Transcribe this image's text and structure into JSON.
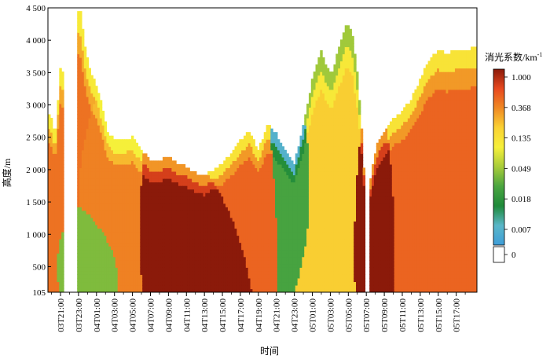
{
  "chart_data": {
    "type": "heatmap",
    "xlabel": "时间",
    "ylabel": "高度/m",
    "colorbar_title": "消光系数/km",
    "colorbar_title_sup": "-1",
    "y_ticks": [
      105,
      500,
      1000,
      1500,
      2000,
      2500,
      3000,
      3500,
      4000,
      4500
    ],
    "y_tick_labels": [
      "105",
      "500",
      "1 000",
      "1 500",
      "2 000",
      "2 500",
      "3 000",
      "3 500",
      "4 000",
      "4 500"
    ],
    "ylim": [
      105,
      4500
    ],
    "x_start_hour": 19.6,
    "x_end_hour": 67.3,
    "x_ticks_hour": [
      21,
      23,
      25,
      27,
      29,
      31,
      33,
      35,
      37,
      39,
      41,
      43,
      45,
      47,
      49,
      51,
      53,
      55,
      57,
      59,
      61,
      63,
      65
    ],
    "x_tick_labels": [
      "03T21:00",
      "03T23:00",
      "04T01:00",
      "04T03:00",
      "04T05:00",
      "04T07:00",
      "04T09:00",
      "04T11:00",
      "04T13:00",
      "04T15:00",
      "04T17:00",
      "04T19:00",
      "04T21:00",
      "04T23:00",
      "05T01:00",
      "05T03:00",
      "05T05:00",
      "05T07:00",
      "05T09:00",
      "05T11:00",
      "05T13:00",
      "05T15:00",
      "05T17:00"
    ],
    "colorbar": {
      "scale": "log",
      "tick_labels": [
        "1.000",
        "0.368",
        "0.135",
        "0.049",
        "0.018",
        "0.007",
        "0"
      ],
      "tick_values": [
        1.0,
        0.368,
        0.135,
        0.049,
        0.018,
        0.007,
        0
      ],
      "colors": [
        "#8b1a0a",
        "#e8491f",
        "#f08a24",
        "#fad233",
        "#f6f03a",
        "#a8cc3a",
        "#4aa540",
        "#1f8a3a",
        "#5ab6c8",
        "#3f9ed8",
        "#ffffff"
      ]
    },
    "profile_top_m": [
      [
        19.6,
        2900
      ],
      [
        20.0,
        2800
      ],
      [
        20.4,
        2500
      ],
      [
        21.0,
        3600
      ],
      [
        21.5,
        3400
      ],
      [
        22.0,
        3900
      ],
      [
        22.6,
        4500
      ],
      [
        23.2,
        4450
      ],
      [
        23.8,
        3800
      ],
      [
        24.4,
        3500
      ],
      [
        25.0,
        3300
      ],
      [
        25.6,
        3000
      ],
      [
        26.2,
        2600
      ],
      [
        27.0,
        2450
      ],
      [
        28.0,
        2450
      ],
      [
        29.0,
        2500
      ],
      [
        30.0,
        2300
      ],
      [
        31.0,
        2150
      ],
      [
        32.0,
        2150
      ],
      [
        33.0,
        2200
      ],
      [
        34.0,
        2100
      ],
      [
        35.0,
        2050
      ],
      [
        36.0,
        1950
      ],
      [
        37.0,
        1900
      ],
      [
        38.0,
        2000
      ],
      [
        39.0,
        2100
      ],
      [
        40.0,
        2250
      ],
      [
        41.0,
        2450
      ],
      [
        42.0,
        2600
      ],
      [
        43.0,
        2300
      ],
      [
        44.0,
        2700
      ],
      [
        45.0,
        2550
      ],
      [
        46.0,
        2300
      ],
      [
        47.0,
        2100
      ],
      [
        48.0,
        2700
      ],
      [
        49.0,
        3400
      ],
      [
        50.0,
        3850
      ],
      [
        50.6,
        3600
      ],
      [
        51.2,
        3500
      ],
      [
        52.0,
        3900
      ],
      [
        52.8,
        4250
      ],
      [
        53.4,
        4150
      ],
      [
        54.0,
        3500
      ],
      [
        54.6,
        2400
      ],
      [
        55.0,
        1300
      ],
      [
        55.6,
        2000
      ],
      [
        56.2,
        2400
      ],
      [
        57.0,
        2600
      ],
      [
        58.0,
        2800
      ],
      [
        59.0,
        2900
      ],
      [
        60.0,
        3100
      ],
      [
        61.0,
        3400
      ],
      [
        62.0,
        3700
      ],
      [
        63.0,
        3850
      ],
      [
        64.0,
        3800
      ],
      [
        65.0,
        3850
      ],
      [
        66.0,
        3850
      ],
      [
        67.3,
        3900
      ]
    ],
    "gap_intervals_hour": [
      [
        21.3,
        22.6
      ],
      [
        54.7,
        55.1
      ]
    ],
    "extinction_layers": [
      {
        "x": [
          26.0,
          30.0
        ],
        "y": [
          300,
          2450
        ],
        "value": 0.3
      },
      {
        "x": [
          29.0,
          36.5
        ],
        "y": [
          400,
          2200
        ],
        "value": 1.0
      },
      {
        "x": [
          36.0,
          41.5
        ],
        "y": [
          105,
          1800
        ],
        "value": 1.0
      },
      {
        "x": [
          23.5,
          27.0
        ],
        "y": [
          105,
          900
        ],
        "value": 0.03
      },
      {
        "x": [
          38.0,
          45.0
        ],
        "y": [
          600,
          2600
        ],
        "value": 0.4
      },
      {
        "x": [
          45.0,
          49.0
        ],
        "y": [
          800,
          3000
        ],
        "value": 0.02
      },
      {
        "x": [
          48.0,
          53.5
        ],
        "y": [
          105,
          4200
        ],
        "value": 0.15
      },
      {
        "x": [
          54.5,
          57.5
        ],
        "y": [
          105,
          2700
        ],
        "value": 1.0
      },
      {
        "x": [
          57.5,
          67.3
        ],
        "y": [
          105,
          3800
        ],
        "value": 0.4
      }
    ]
  }
}
